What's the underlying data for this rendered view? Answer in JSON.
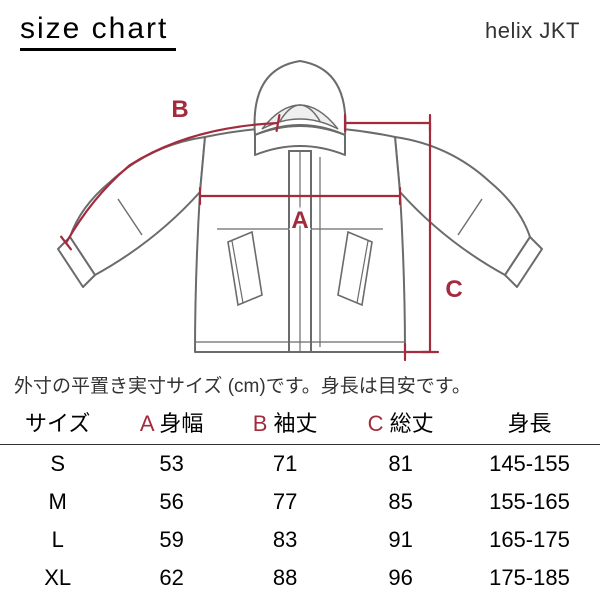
{
  "title": "size chart",
  "product": "helix JKT",
  "note": "外寸の平置き実寸サイズ (cm)です。身長は目安です。",
  "accent_color": "#a22c3e",
  "jacket_stroke": "#6b6b6b",
  "jacket_stroke_width": 2,
  "dim_line_width": 2.2,
  "labels": {
    "A": "A",
    "B": "B",
    "C": "C"
  },
  "table": {
    "columns": [
      {
        "header_parts": [
          {
            "text": "サイズ"
          }
        ]
      },
      {
        "header_parts": [
          {
            "text": "A",
            "accent": true
          },
          {
            "text": " 身幅"
          }
        ]
      },
      {
        "header_parts": [
          {
            "text": "B",
            "accent": true
          },
          {
            "text": " 袖丈"
          }
        ]
      },
      {
        "header_parts": [
          {
            "text": "C",
            "accent": true
          },
          {
            "text": " 総丈"
          }
        ]
      },
      {
        "header_parts": [
          {
            "text": "身長"
          }
        ]
      }
    ],
    "rows": [
      [
        "S",
        "53",
        "71",
        "81",
        "145-155"
      ],
      [
        "M",
        "56",
        "77",
        "85",
        "155-165"
      ],
      [
        "L",
        "59",
        "83",
        "91",
        "165-175"
      ],
      [
        "XL",
        "62",
        "88",
        "96",
        "175-185"
      ]
    ]
  }
}
